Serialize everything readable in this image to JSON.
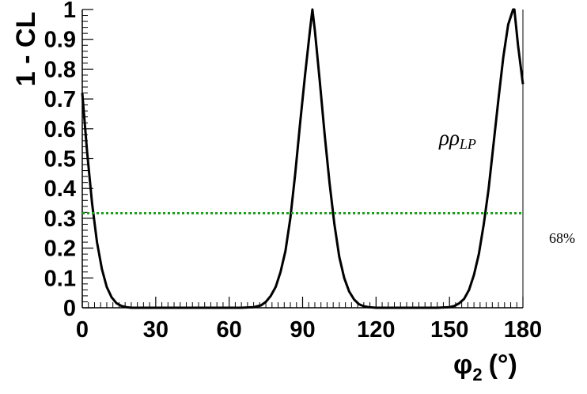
{
  "chart_data": {
    "type": "line",
    "title": "",
    "xlabel": "φ₂ (°)",
    "xlabel_parts": {
      "symbol": "φ",
      "subscript": "2",
      "unit": "(°)"
    },
    "ylabel": "1 - CL",
    "xlim": [
      0,
      180
    ],
    "ylim": [
      0,
      1
    ],
    "grid": false,
    "x_ticks": [
      0,
      30,
      60,
      90,
      120,
      150,
      180
    ],
    "y_ticks": [
      0,
      0.1,
      0.2,
      0.3,
      0.4,
      0.5,
      0.6,
      0.7,
      0.8,
      0.9,
      1
    ],
    "x_tick_labels": [
      "0",
      "30",
      "60",
      "90",
      "120",
      "150",
      "180"
    ],
    "y_tick_labels": [
      "0",
      "0.1",
      "0.2",
      "0.3",
      "0.4",
      "0.5",
      "0.6",
      "0.7",
      "0.8",
      "0.9",
      "1"
    ],
    "series": [
      {
        "color": "#000000",
        "style": "solid",
        "x": [
          0,
          2,
          4,
          6,
          8,
          10,
          12,
          14,
          16,
          18,
          20,
          30,
          40,
          50,
          60,
          65,
          70,
          73,
          75,
          77,
          79,
          81,
          83,
          85,
          87,
          89,
          91,
          93,
          94,
          95,
          97,
          99,
          101,
          103,
          105,
          107,
          109,
          111,
          113,
          115,
          117,
          120,
          130,
          140,
          145,
          150,
          152,
          154,
          156,
          158,
          160,
          162,
          164,
          166,
          168,
          170,
          172,
          174,
          176,
          176.5,
          178,
          180
        ],
        "y": [
          0.72,
          0.52,
          0.35,
          0.22,
          0.13,
          0.07,
          0.035,
          0.015,
          0.006,
          0.002,
          0.0,
          0.0,
          0.0,
          0.0,
          0.0,
          0.0,
          0.002,
          0.008,
          0.02,
          0.04,
          0.07,
          0.12,
          0.19,
          0.3,
          0.45,
          0.62,
          0.78,
          0.93,
          1.0,
          0.93,
          0.76,
          0.58,
          0.42,
          0.28,
          0.17,
          0.1,
          0.055,
          0.028,
          0.012,
          0.005,
          0.002,
          0.0,
          0.0,
          0.0,
          0.0,
          0.002,
          0.006,
          0.015,
          0.03,
          0.06,
          0.11,
          0.18,
          0.28,
          0.4,
          0.55,
          0.7,
          0.84,
          0.95,
          1.0,
          1.0,
          0.88,
          0.75
        ]
      },
      {
        "color": "#1aa01a",
        "style": "dotted",
        "x": [
          0,
          180
        ],
        "y": [
          0.317,
          0.317
        ]
      }
    ],
    "annotations": [
      {
        "text": "ρρ",
        "subscript": "LP"
      },
      {
        "text": "68%"
      }
    ]
  }
}
